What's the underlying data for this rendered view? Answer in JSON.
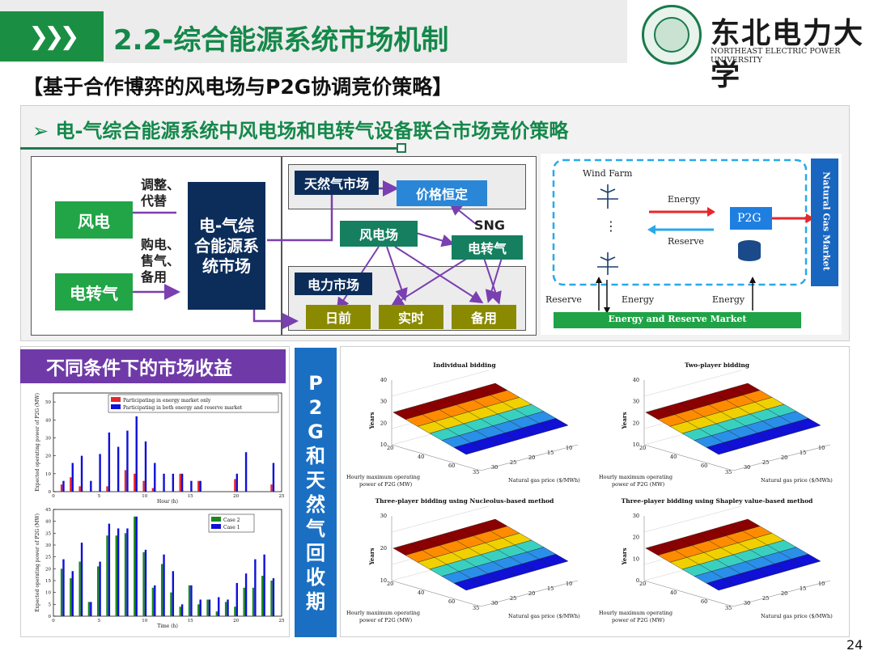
{
  "header": {
    "chevron": "❯❯❯",
    "title": "2.2-综合能源系统市场机制"
  },
  "university": {
    "name_cn": "东北电力大学",
    "name_en": "NORTHEAST ELECTRIC POWER UNIVERSITY"
  },
  "subtitle": "【基于合作博弈的风电场与P2G协调竞价策略】",
  "section": {
    "marker": "➢",
    "title": "电-气综合能源系统中风电场和电转气设备联合市场竞价策略"
  },
  "flow": {
    "wind": "风电",
    "p2g": "电转气",
    "adjust": "调整、代替",
    "trade": "购电、售气、备用",
    "system": "电-气综合能源系统市场",
    "gas_market": "天然气市场",
    "price_fixed": "价格恒定",
    "wind_farm": "风电场",
    "sng": "SNG",
    "p2g_right": "电转气",
    "power_market": "电力市场",
    "day_ahead": "日前",
    "realtime": "实时",
    "reserve": "备用"
  },
  "market_diagram": {
    "wind_farm": "Wind Farm",
    "energy_top": "Energy",
    "p2g": "P2G",
    "reserve_mid": "Reserve",
    "dots": "⋮",
    "reserve_bottom": "Reserve",
    "energy_b1": "Energy",
    "energy_b2": "Energy",
    "bottom_bar": "Energy and Reserve Market",
    "side_bar": "Natural Gas Market",
    "colors": {
      "dash_blue": "#29a9e8",
      "bar_green": "#1fa346",
      "side_blue": "#1866c0"
    }
  },
  "revenue_title": "不同条件下的市场收益",
  "vertical_title": "P2G和天然气回收期",
  "chart_data": [
    {
      "type": "bar",
      "ylabel": "Expected operating power of P2G (MW)",
      "xlabel": "Hour (h)",
      "ylim": [
        0,
        55
      ],
      "x_ticks": [
        "0",
        "5",
        "10",
        "15",
        "20",
        "25"
      ],
      "y_ticks": [
        "0",
        "10",
        "20",
        "30",
        "40",
        "50"
      ],
      "categories": [
        1,
        2,
        3,
        4,
        5,
        6,
        7,
        8,
        9,
        10,
        11,
        12,
        13,
        14,
        15,
        16,
        17,
        18,
        19,
        20,
        21,
        22,
        23,
        24
      ],
      "series": [
        {
          "name": "Participating in energy market only",
          "color": "#e8262b",
          "values": [
            4,
            8,
            3,
            0,
            0,
            3,
            0,
            12,
            10,
            6,
            2,
            0,
            0,
            10,
            0,
            6,
            0,
            0,
            0,
            7,
            0,
            0,
            0,
            4
          ]
        },
        {
          "name": "Participating in both energy and reserve market",
          "color": "#1010d8",
          "values": [
            6,
            16,
            20,
            6,
            21,
            33,
            25,
            34,
            42,
            28,
            16,
            10,
            10,
            10,
            6,
            6,
            0,
            0,
            0,
            10,
            22,
            0,
            0,
            16
          ]
        }
      ]
    },
    {
      "type": "bar",
      "ylabel": "Expected operating power of P2G (MW)",
      "xlabel": "Time (h)",
      "ylim": [
        0,
        45
      ],
      "x_ticks": [
        "0",
        "5",
        "10",
        "15",
        "20",
        "25"
      ],
      "y_ticks": [
        "0",
        "5",
        "10",
        "15",
        "20",
        "25",
        "30",
        "35",
        "40",
        "45"
      ],
      "categories": [
        1,
        2,
        3,
        4,
        5,
        6,
        7,
        8,
        9,
        10,
        11,
        12,
        13,
        14,
        15,
        16,
        17,
        18,
        19,
        20,
        21,
        22,
        23,
        24
      ],
      "series": [
        {
          "name": "Case 2",
          "color": "#1b8a1b",
          "values": [
            20,
            16,
            23,
            6,
            21,
            34,
            34,
            35,
            42,
            27,
            12,
            22,
            10,
            4,
            13,
            5,
            7,
            2,
            6,
            4,
            12,
            12,
            17,
            15
          ]
        },
        {
          "name": "Case 1",
          "color": "#1010d8",
          "values": [
            24,
            19,
            31,
            6,
            23,
            39,
            37,
            37,
            42,
            28,
            13,
            26,
            19,
            5,
            13,
            7,
            7,
            8,
            7,
            14,
            18,
            24,
            26,
            16
          ]
        }
      ]
    },
    {
      "type": "surface",
      "title": "Individual bidding",
      "zlabel": "Years",
      "xlabel": "Natural gas price ($/MWh)",
      "ylabel": "Hourly maximum operating power of P2G (MW)",
      "z_ticks": [
        "10",
        "20",
        "30",
        "40"
      ],
      "x_ticks": [
        "35",
        "30",
        "25",
        "20",
        "15",
        "10"
      ],
      "y_ticks": [
        "20",
        "40",
        "60"
      ]
    },
    {
      "type": "surface",
      "title": "Two-player bidding",
      "zlabel": "Years",
      "xlabel": "Natural gas price ($/MWh)",
      "ylabel": "Hourly maximum operating power of P2G (MW)",
      "z_ticks": [
        "10",
        "20",
        "30",
        "40"
      ],
      "x_ticks": [
        "35",
        "30",
        "25",
        "20",
        "15",
        "10"
      ],
      "y_ticks": [
        "20",
        "40",
        "60"
      ]
    },
    {
      "type": "surface",
      "title": "Three-player bidding using Nucleolus-based method",
      "zlabel": "Years",
      "xlabel": "Natural gas price ($/MWh)",
      "ylabel": "Hourly maximum operating power of P2G (MW)",
      "z_ticks": [
        "10",
        "20",
        "30"
      ],
      "x_ticks": [
        "35",
        "30",
        "25",
        "20",
        "15",
        "10"
      ],
      "y_ticks": [
        "20",
        "40",
        "60"
      ]
    },
    {
      "type": "surface",
      "title": "Three-player bidding using Shapley value-based method",
      "zlabel": "Years",
      "xlabel": "Natural gas price ($/MWh)",
      "ylabel": "Hourly maximum operating power of P2G (MW)",
      "z_ticks": [
        "0",
        "10",
        "20",
        "30"
      ],
      "x_ticks": [
        "35",
        "30",
        "25",
        "20",
        "15",
        "10"
      ],
      "y_ticks": [
        "20",
        "40",
        "60"
      ]
    }
  ],
  "surface_colors": [
    "#8b0000",
    "#ff8c00",
    "#f0d000",
    "#3ad0c0",
    "#2a8fe8",
    "#1010d8"
  ],
  "page_number": "24"
}
